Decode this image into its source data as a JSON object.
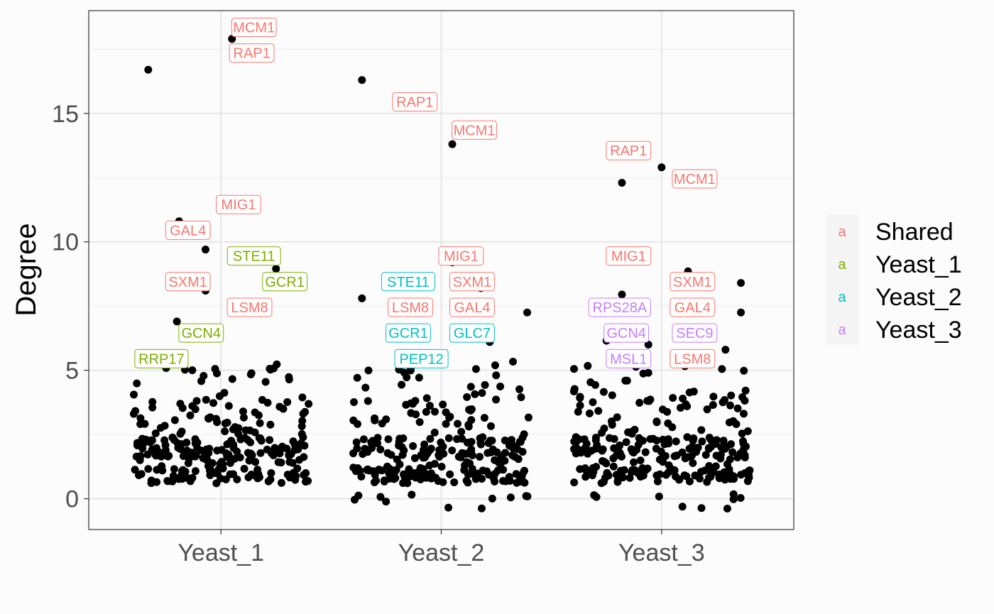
{
  "chart_data": {
    "type": "scatter",
    "ylabel": "Degree",
    "xlabel": "",
    "categories": [
      "Yeast_1",
      "Yeast_2",
      "Yeast_3"
    ],
    "ylim": [
      -1.2,
      19
    ],
    "yticks": [
      0,
      5,
      10,
      15
    ],
    "grid": true,
    "legend": {
      "position": "right",
      "entries": [
        {
          "name": "Shared",
          "color": "#F8766D"
        },
        {
          "name": "Yeast_1",
          "color": "#7CAE00"
        },
        {
          "name": "Yeast_2",
          "color": "#00BFC4"
        },
        {
          "name": "Yeast_3",
          "color": "#C77CFF"
        }
      ]
    },
    "highlighted_points": [
      {
        "category": "Yeast_1",
        "x": 0.05,
        "y": 17.9
      },
      {
        "category": "Yeast_1",
        "x": -0.33,
        "y": 16.7
      },
      {
        "category": "Yeast_1",
        "x": -0.19,
        "y": 10.8
      },
      {
        "category": "Yeast_1",
        "x": -0.07,
        "y": 9.7
      },
      {
        "category": "Yeast_1",
        "x": 0.25,
        "y": 8.95
      },
      {
        "category": "Yeast_1",
        "x": -0.07,
        "y": 8.1
      },
      {
        "category": "Yeast_1",
        "x": -0.2,
        "y": 6.9
      },
      {
        "category": "Yeast_1",
        "x": -0.13,
        "y": 5.0
      },
      {
        "category": "Yeast_2",
        "x": 0.05,
        "y": 13.8
      },
      {
        "category": "Yeast_2",
        "x": -0.36,
        "y": 16.3
      },
      {
        "category": "Yeast_2",
        "x": 0.05,
        "y": 9.2
      },
      {
        "category": "Yeast_2",
        "x": -0.36,
        "y": 7.8
      },
      {
        "category": "Yeast_2",
        "x": 0.18,
        "y": 8.2
      },
      {
        "category": "Yeast_2",
        "x": 0.39,
        "y": 7.25
      },
      {
        "category": "Yeast_2",
        "x": 0.22,
        "y": 6.1
      },
      {
        "category": "Yeast_3",
        "x": 0.0,
        "y": 12.9
      },
      {
        "category": "Yeast_3",
        "x": -0.18,
        "y": 12.3
      },
      {
        "category": "Yeast_3",
        "x": 0.12,
        "y": 8.85
      },
      {
        "category": "Yeast_3",
        "x": -0.18,
        "y": 7.95
      },
      {
        "category": "Yeast_3",
        "x": 0.36,
        "y": 8.4
      },
      {
        "category": "Yeast_3",
        "x": 0.36,
        "y": 7.25
      },
      {
        "category": "Yeast_3",
        "x": -0.25,
        "y": 6.15
      },
      {
        "category": "Yeast_3",
        "x": -0.06,
        "y": 6.0
      },
      {
        "category": "Yeast_3",
        "x": 0.29,
        "y": 5.8
      },
      {
        "category": "Yeast_3",
        "x": -0.06,
        "y": 4.9
      }
    ],
    "labels": [
      {
        "text": "MCM1",
        "group": "Shared",
        "x": 1.15,
        "y": 18.35
      },
      {
        "text": "RAP1",
        "group": "Shared",
        "x": 1.14,
        "y": 17.35
      },
      {
        "text": "GAL4",
        "group": "Shared",
        "x": 0.85,
        "y": 10.45
      },
      {
        "text": "MIG1",
        "group": "Shared",
        "x": 1.08,
        "y": 11.45
      },
      {
        "text": "STE11",
        "group": "Yeast_1",
        "x": 1.15,
        "y": 9.45
      },
      {
        "text": "SXM1",
        "group": "Shared",
        "x": 0.85,
        "y": 8.45
      },
      {
        "text": "GCR1",
        "group": "Yeast_1",
        "x": 1.29,
        "y": 8.45
      },
      {
        "text": "LSM8",
        "group": "Shared",
        "x": 1.13,
        "y": 7.45
      },
      {
        "text": "GCN4",
        "group": "Yeast_1",
        "x": 0.91,
        "y": 6.45
      },
      {
        "text": "RRP17",
        "group": "Yeast_1",
        "x": 0.73,
        "y": 5.45
      },
      {
        "text": "RAP1",
        "group": "Shared",
        "x": 1.88,
        "y": 15.45
      },
      {
        "text": "MCM1",
        "group": "Shared",
        "x": 2.15,
        "y": 14.35
      },
      {
        "text": "MIG1",
        "group": "Shared",
        "x": 2.09,
        "y": 9.45
      },
      {
        "text": "STE11",
        "group": "Yeast_2",
        "x": 1.85,
        "y": 8.45
      },
      {
        "text": "SXM1",
        "group": "Shared",
        "x": 2.14,
        "y": 8.45
      },
      {
        "text": "LSM8",
        "group": "Shared",
        "x": 1.86,
        "y": 7.45
      },
      {
        "text": "GAL4",
        "group": "Shared",
        "x": 2.14,
        "y": 7.45
      },
      {
        "text": "GCR1",
        "group": "Yeast_2",
        "x": 1.85,
        "y": 6.45
      },
      {
        "text": "GLC7",
        "group": "Yeast_2",
        "x": 2.14,
        "y": 6.45
      },
      {
        "text": "PEP12",
        "group": "Yeast_2",
        "x": 1.91,
        "y": 5.45
      },
      {
        "text": "RAP1",
        "group": "Shared",
        "x": 2.85,
        "y": 13.55
      },
      {
        "text": "MCM1",
        "group": "Shared",
        "x": 3.15,
        "y": 12.45
      },
      {
        "text": "MIG1",
        "group": "Shared",
        "x": 2.85,
        "y": 9.45
      },
      {
        "text": "SXM1",
        "group": "Shared",
        "x": 3.14,
        "y": 8.45
      },
      {
        "text": "RPS28A",
        "group": "Yeast_3",
        "x": 2.81,
        "y": 7.45
      },
      {
        "text": "GAL4",
        "group": "Shared",
        "x": 3.14,
        "y": 7.45
      },
      {
        "text": "GCN4",
        "group": "Yeast_3",
        "x": 2.84,
        "y": 6.45
      },
      {
        "text": "SEC9",
        "group": "Yeast_3",
        "x": 3.15,
        "y": 6.45
      },
      {
        "text": "MSL1",
        "group": "Yeast_3",
        "x": 2.85,
        "y": 5.45
      },
      {
        "text": "LSM8",
        "group": "Shared",
        "x": 3.14,
        "y": 5.45
      }
    ],
    "bulk_points": {
      "count_per_category": 260,
      "x_jitter": 0.4,
      "y_range": [
        -0.4,
        5.5
      ]
    }
  }
}
